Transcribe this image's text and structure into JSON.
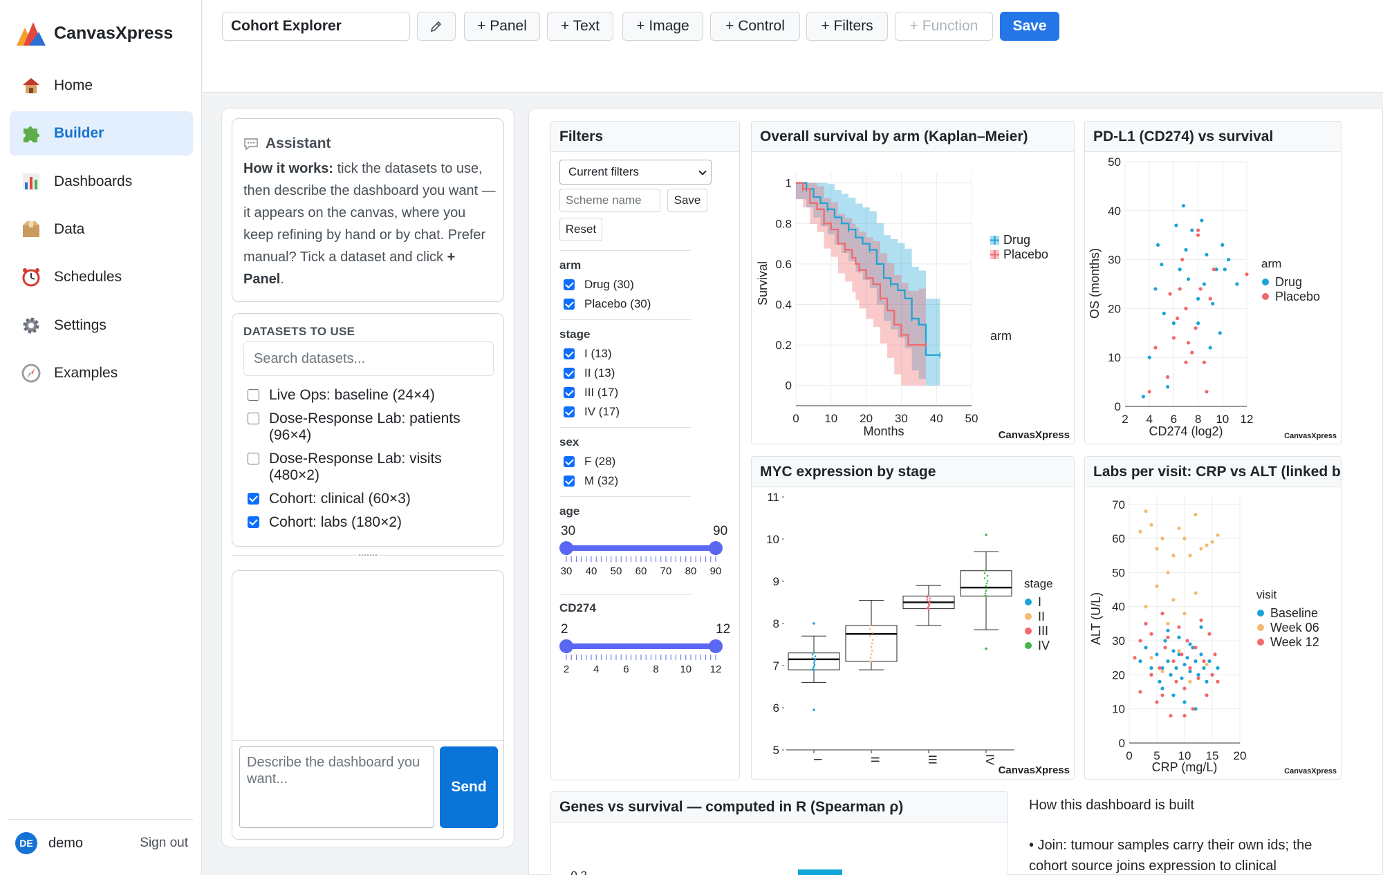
{
  "app": {
    "brand": "CanvasXpress"
  },
  "sidebar": {
    "items": [
      {
        "label": "Home",
        "icon": "house-icon"
      },
      {
        "label": "Builder",
        "icon": "puzzle-icon"
      },
      {
        "label": "Dashboards",
        "icon": "bar-chart-icon"
      },
      {
        "label": "Data",
        "icon": "box-icon"
      },
      {
        "label": "Schedules",
        "icon": "alarm-clock-icon"
      },
      {
        "label": "Settings",
        "icon": "gear-icon"
      },
      {
        "label": "Examples",
        "icon": "compass-icon"
      }
    ],
    "active": "Builder",
    "user": {
      "initials": "DE",
      "name": "demo",
      "signout": "Sign out"
    }
  },
  "toolbar": {
    "title_value": "Cohort Explorer",
    "edit_icon": "pencil-icon",
    "panel": "+ Panel",
    "text": "+ Text",
    "image": "+ Image",
    "control": "+ Control",
    "filters": "+ Filters",
    "function": "+ Function",
    "save": "Save"
  },
  "assistant": {
    "title": "Assistant",
    "how_label": "How it works:",
    "body": " tick the datasets to use, then describe the dashboard you want — it appears on the canvas, where you keep refining by hand or by chat. Prefer manual? Tick a dataset and click ",
    "body_bold_end": "+ Panel",
    "body_end": ".",
    "datasets_header": "DATASETS TO USE",
    "search_placeholder": "Search datasets...",
    "datasets": [
      {
        "label": "Live Ops: baseline (24×4)",
        "checked": false
      },
      {
        "label": "Dose-Response Lab: patients (96×4)",
        "checked": false
      },
      {
        "label": "Dose-Response Lab: visits (480×2)",
        "checked": false
      },
      {
        "label": "Cohort: clinical (60×3)",
        "checked": true
      },
      {
        "label": "Cohort: labs (180×2)",
        "checked": true
      }
    ],
    "chat_placeholder": "Describe the dashboard you want...",
    "send": "Send"
  },
  "filters": {
    "title": "Filters",
    "select_value": "Current filters",
    "scheme_placeholder": "Scheme name",
    "save": "Save",
    "reset": "Reset",
    "sections": [
      {
        "title": "arm",
        "items": [
          {
            "label": "Drug (30)",
            "checked": true
          },
          {
            "label": "Placebo (30)",
            "checked": true
          }
        ]
      },
      {
        "title": "stage",
        "items": [
          {
            "label": "I (13)",
            "checked": true
          },
          {
            "label": "II (13)",
            "checked": true
          },
          {
            "label": "III (17)",
            "checked": true
          },
          {
            "label": "IV (17)",
            "checked": true
          }
        ]
      },
      {
        "title": "sex",
        "items": [
          {
            "label": "F (28)",
            "checked": true
          },
          {
            "label": "M (32)",
            "checked": true
          }
        ]
      }
    ],
    "age": {
      "title": "age",
      "min": "30",
      "max": "90",
      "ticks": [
        "30",
        "40",
        "50",
        "60",
        "70",
        "80",
        "90"
      ]
    },
    "cd274": {
      "title": "CD274",
      "min": "2",
      "max": "12",
      "ticks": [
        "2",
        "4",
        "6",
        "8",
        "10",
        "12"
      ]
    }
  },
  "charts": {
    "km_title": "Overall survival by arm (Kaplan–Meier)",
    "pdl1_title": "PD-L1 (CD274) vs survival",
    "myc_title": "MYC expression by stage",
    "labs_title": "Labs per visit: CRP vs ALT (linked b",
    "genes_title": "Genes vs survival — computed in R (Spearman ρ)",
    "watermark": "CanvasXpress"
  },
  "chart_data": [
    {
      "type": "line",
      "title": "Overall survival by arm (Kaplan–Meier)",
      "xlabel": "Months",
      "ylabel": "Survival",
      "xlim": [
        0,
        50
      ],
      "ylim": [
        0,
        1
      ],
      "xticks": [
        "0",
        "10",
        "20",
        "30",
        "40",
        "50"
      ],
      "yticks": [
        "0",
        "0.2",
        "0.4",
        "0.6",
        "0.8",
        "1"
      ],
      "legend_title": "arm",
      "legend_position": "right",
      "series": [
        {
          "name": "Drug",
          "color": "#1ba3d6",
          "x": [
            0,
            3,
            5,
            7,
            9,
            11,
            13,
            15,
            17,
            19,
            21,
            23,
            25,
            27,
            29,
            31,
            33,
            35,
            37,
            41
          ],
          "y": [
            1,
            0.97,
            0.93,
            0.9,
            0.87,
            0.83,
            0.8,
            0.77,
            0.73,
            0.7,
            0.67,
            0.6,
            0.53,
            0.5,
            0.47,
            0.43,
            0.33,
            0.3,
            0.15,
            0.15
          ]
        },
        {
          "name": "Placebo",
          "color": "#f2686a",
          "x": [
            0,
            2,
            4,
            6,
            8,
            10,
            12,
            14,
            16,
            17,
            18,
            20,
            22,
            24,
            26,
            28,
            30,
            32,
            35,
            37
          ],
          "y": [
            1,
            0.97,
            0.9,
            0.87,
            0.8,
            0.77,
            0.7,
            0.67,
            0.63,
            0.6,
            0.57,
            0.53,
            0.5,
            0.43,
            0.37,
            0.3,
            0.25,
            0.2,
            0.2,
            0.2
          ]
        }
      ]
    },
    {
      "type": "scatter",
      "title": "PD-L1 (CD274) vs survival",
      "xlabel": "CD274 (log2)",
      "ylabel": "OS (months)",
      "xlim": [
        2,
        12
      ],
      "ylim": [
        0,
        50
      ],
      "xticks": [
        "2",
        "4",
        "6",
        "8",
        "10",
        "12"
      ],
      "yticks": [
        "0",
        "10",
        "20",
        "30",
        "40",
        "50"
      ],
      "legend_title": "arm",
      "legend_position": "right",
      "series": [
        {
          "name": "Drug",
          "color": "#1ba3d6",
          "points": [
            [
              3.5,
              2
            ],
            [
              4,
              10
            ],
            [
              4.5,
              24
            ],
            [
              4.7,
              33
            ],
            [
              5,
              29
            ],
            [
              5.2,
              19
            ],
            [
              5.5,
              4
            ],
            [
              6,
              17
            ],
            [
              6.2,
              37
            ],
            [
              6.5,
              28
            ],
            [
              6.8,
              41
            ],
            [
              7,
              32
            ],
            [
              7.2,
              26
            ],
            [
              7.5,
              36
            ],
            [
              8,
              22
            ],
            [
              8,
              17
            ],
            [
              8.3,
              38
            ],
            [
              8.5,
              25
            ],
            [
              8.7,
              31
            ],
            [
              9,
              12
            ],
            [
              9.2,
              21
            ],
            [
              9.5,
              28
            ],
            [
              9.8,
              15
            ],
            [
              10,
              33
            ],
            [
              10.2,
              28
            ],
            [
              10.5,
              30
            ],
            [
              11.2,
              25
            ]
          ]
        },
        {
          "name": "Placebo",
          "color": "#f2686a",
          "points": [
            [
              4.5,
              12
            ],
            [
              5.5,
              6
            ],
            [
              5.7,
              23
            ],
            [
              6,
              14
            ],
            [
              6.3,
              18
            ],
            [
              6.5,
              24
            ],
            [
              6.7,
              30
            ],
            [
              7,
              20
            ],
            [
              7,
              9
            ],
            [
              7.2,
              13
            ],
            [
              7.5,
              11
            ],
            [
              7.8,
              16
            ],
            [
              8,
              35
            ],
            [
              8,
              36
            ],
            [
              8.2,
              24
            ],
            [
              8.5,
              9
            ],
            [
              8.7,
              3
            ],
            [
              9,
              22
            ],
            [
              9.3,
              28
            ],
            [
              12,
              27
            ],
            [
              4,
              3
            ]
          ]
        }
      ]
    },
    {
      "type": "box",
      "title": "MYC expression by stage",
      "categories": [
        "I",
        "II",
        "III",
        "IV"
      ],
      "ylim": [
        5,
        11
      ],
      "yticks": [
        "5",
        "6",
        "7",
        "8",
        "9",
        "10",
        "11"
      ],
      "legend_title": "stage",
      "legend_position": "right",
      "series": [
        {
          "name": "I",
          "color": "#1ba3d6",
          "min": 6.6,
          "q1": 6.9,
          "median": 7.15,
          "q3": 7.3,
          "max": 7.7,
          "outliers": [
            5.95,
            8.0
          ]
        },
        {
          "name": "II",
          "color": "#f5b971",
          "min": 6.9,
          "q1": 7.1,
          "median": 7.75,
          "q3": 7.95,
          "max": 8.55
        },
        {
          "name": "III",
          "color": "#f2686a",
          "min": 7.95,
          "q1": 8.35,
          "median": 8.5,
          "q3": 8.65,
          "max": 8.9
        },
        {
          "name": "IV",
          "color": "#43b649",
          "min": 7.85,
          "q1": 8.65,
          "median": 8.85,
          "q3": 9.25,
          "max": 9.7,
          "outliers": [
            7.4,
            10.1
          ]
        }
      ]
    },
    {
      "type": "scatter",
      "title": "Labs per visit: CRP vs ALT (linked b",
      "xlabel": "CRP (mg/L)",
      "ylabel": "ALT (U/L)",
      "xlim": [
        0,
        20
      ],
      "ylim": [
        0,
        70
      ],
      "xticks": [
        "0",
        "5",
        "10",
        "15",
        "20"
      ],
      "yticks": [
        "0",
        "10",
        "20",
        "30",
        "40",
        "50",
        "60",
        "70"
      ],
      "legend_title": "visit",
      "legend_position": "right",
      "series": [
        {
          "name": "Baseline",
          "color": "#1ba3d6",
          "points": [
            [
              2,
              24
            ],
            [
              3,
              28
            ],
            [
              4,
              22
            ],
            [
              5,
              26
            ],
            [
              5.5,
              18
            ],
            [
              6,
              22
            ],
            [
              6.5,
              30
            ],
            [
              7,
              24
            ],
            [
              7.5,
              20
            ],
            [
              8,
              27
            ],
            [
              8.5,
              22
            ],
            [
              9,
              26
            ],
            [
              9.5,
              19
            ],
            [
              10,
              23
            ],
            [
              10.5,
              25
            ],
            [
              11,
              21
            ],
            [
              11.5,
              28
            ],
            [
              12,
              24
            ],
            [
              12.5,
              20
            ],
            [
              13,
              26
            ],
            [
              13.5,
              22
            ],
            [
              14,
              18
            ],
            [
              14.5,
              24
            ],
            [
              15,
              20
            ],
            [
              16,
              22
            ],
            [
              6,
              16
            ],
            [
              8,
              14
            ],
            [
              10,
              12
            ],
            [
              12,
              10
            ],
            [
              7,
              33
            ],
            [
              9,
              31
            ],
            [
              11,
              29
            ],
            [
              13,
              34
            ]
          ]
        },
        {
          "name": "Week 06",
          "color": "#f5b971",
          "points": [
            [
              2,
              62
            ],
            [
              3,
              68
            ],
            [
              4,
              64
            ],
            [
              5,
              57
            ],
            [
              6,
              60
            ],
            [
              7,
              50
            ],
            [
              8,
              55
            ],
            [
              9,
              63
            ],
            [
              10,
              60
            ],
            [
              11,
              55
            ],
            [
              12,
              67
            ],
            [
              13,
              57
            ],
            [
              14,
              58
            ],
            [
              15,
              59
            ],
            [
              16,
              61
            ],
            [
              3,
              40
            ],
            [
              5,
              46
            ],
            [
              8,
              42
            ],
            [
              10,
              38
            ],
            [
              12,
              44
            ],
            [
              4,
              25
            ],
            [
              6,
              21
            ],
            [
              9,
              27
            ],
            [
              11,
              18
            ],
            [
              14,
              23
            ],
            [
              7,
              35
            ]
          ]
        },
        {
          "name": "Week 12",
          "color": "#f2686a",
          "points": [
            [
              1,
              25
            ],
            [
              2,
              30
            ],
            [
              3,
              35
            ],
            [
              4,
              20
            ],
            [
              5,
              12
            ],
            [
              5.5,
              22
            ],
            [
              6,
              14
            ],
            [
              6.5,
              28
            ],
            [
              7,
              31
            ],
            [
              7.5,
              8
            ],
            [
              8,
              24
            ],
            [
              8.5,
              18
            ],
            [
              9,
              34
            ],
            [
              9.5,
              26
            ],
            [
              10,
              16
            ],
            [
              10.5,
              30
            ],
            [
              11,
              22
            ],
            [
              11.5,
              10
            ],
            [
              12,
              28
            ],
            [
              12.5,
              19
            ],
            [
              13,
              36
            ],
            [
              13.5,
              24
            ],
            [
              14,
              14
            ],
            [
              14.5,
              32
            ],
            [
              15,
              20
            ],
            [
              15.5,
              26
            ],
            [
              16,
              18
            ],
            [
              2,
              15
            ],
            [
              4,
              32
            ],
            [
              6,
              38
            ],
            [
              10,
              8
            ]
          ]
        }
      ]
    },
    {
      "type": "bar",
      "title": "Genes vs survival — computed in R (Spearman ρ)",
      "yticks": [
        "0.2"
      ],
      "values": [
        0.25
      ],
      "color": "#10a5d9"
    }
  ],
  "note": {
    "title": "How this dashboard is built",
    "bullet": "• Join: tumour samples carry their own ids; the cohort source joins expression to clinical"
  }
}
